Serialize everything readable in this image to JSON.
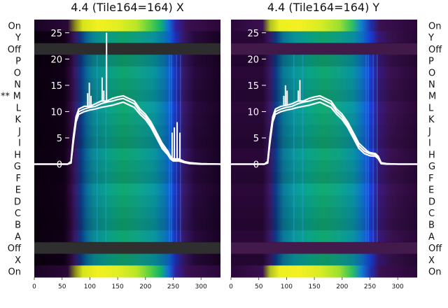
{
  "chart_data": [
    {
      "type": "heatmap",
      "title": "4.4 (Tile164=164) X",
      "row_labels": [
        "On",
        "Y",
        "Off",
        "P",
        "O",
        "N",
        "M",
        "L",
        "K",
        "J",
        "I",
        "H",
        "G",
        "F",
        "E",
        "D",
        "C",
        "B",
        "A",
        "Off",
        "X",
        "On"
      ],
      "row_markers": [
        {
          "row": "M",
          "marker": "**"
        }
      ],
      "x_ticks": [
        0,
        50,
        100,
        150,
        200,
        250,
        300
      ],
      "xlim": [
        0,
        335
      ],
      "y_ticks": [
        0,
        5,
        10,
        15,
        20,
        25
      ],
      "ylim": [
        -21.5,
        27.5
      ],
      "colormap": "nipy_spectral",
      "overlay": {
        "color": "#ffffff",
        "lines": [
          {
            "x": [
              0,
              60,
              66,
              70,
              75,
              80,
              90,
              100,
              110,
              120,
              130,
              140,
              150,
              160,
              170,
              180,
              190,
              200,
              210,
              220,
              230,
              240,
              245,
              250,
              260,
              270,
              280,
              300,
              335
            ],
            "y": [
              0,
              0,
              0.5,
              5,
              9,
              10.5,
              11,
              11,
              11.5,
              12,
              12,
              12.5,
              12.8,
              13,
              12.5,
              12,
              10.5,
              9.5,
              8,
              6,
              4,
              2.5,
              1.5,
              1,
              1,
              0.5,
              0.3,
              0.1,
              0
            ]
          },
          {
            "x": [
              0,
              60,
              66,
              70,
              75,
              80,
              90,
              100,
              110,
              120,
              130,
              140,
              150,
              160,
              170,
              180,
              190,
              200,
              210,
              220,
              230,
              240,
              245,
              250,
              260,
              270,
              280,
              300,
              335
            ],
            "y": [
              0,
              0,
              0.3,
              4.5,
              8.5,
              10,
              10.5,
              10.8,
              11,
              11.5,
              11.8,
              12,
              12.3,
              12.5,
              12,
              11.5,
              10,
              9,
              7.5,
              5.5,
              3.5,
              2,
              1.2,
              0.8,
              0.8,
              0.4,
              0.2,
              0.1,
              0
            ]
          },
          {
            "x": [
              0,
              60,
              66,
              70,
              75,
              80,
              90,
              100,
              110,
              120,
              130,
              140,
              150,
              160,
              170,
              180,
              190,
              200,
              210,
              220,
              230,
              240,
              245,
              250,
              260,
              270,
              280,
              300,
              335
            ],
            "y": [
              0,
              0,
              0.2,
              4,
              8,
              9.5,
              10,
              10.3,
              10.5,
              10.8,
              11,
              11.2,
              11.5,
              11.8,
              11.3,
              10.8,
              9.5,
              8.5,
              7,
              5,
              3,
              1.8,
              1,
              0.6,
              0.6,
              0.3,
              0.1,
              0,
              0
            ]
          }
        ],
        "spikes": [
          {
            "x": 96,
            "y": 13.5
          },
          {
            "x": 99,
            "y": 15.5
          },
          {
            "x": 102,
            "y": 13
          },
          {
            "x": 122,
            "y": 16.5
          },
          {
            "x": 125,
            "y": 14
          },
          {
            "x": 130,
            "y": 25
          },
          {
            "x": 248,
            "y": 6
          },
          {
            "x": 252,
            "y": 7
          },
          {
            "x": 257,
            "y": 8
          },
          {
            "x": 262,
            "y": 6
          }
        ]
      }
    },
    {
      "type": "heatmap",
      "title": "4.4 (Tile164=164) Y",
      "row_labels": [
        "On",
        "Y",
        "Off",
        "P",
        "O",
        "N",
        "M",
        "L",
        "K",
        "J",
        "I",
        "H",
        "G",
        "F",
        "E",
        "D",
        "C",
        "B",
        "A",
        "Off",
        "X",
        "On"
      ],
      "row_markers": [],
      "x_ticks": [
        0,
        50,
        100,
        150,
        200,
        250,
        300
      ],
      "xlim": [
        0,
        335
      ],
      "y_ticks": [
        0,
        5,
        10,
        15,
        20,
        25
      ],
      "ylim": [
        -21.5,
        27.5
      ],
      "colormap": "nipy_spectral",
      "overlay": {
        "color": "#ffffff",
        "lines": [
          {
            "x": [
              0,
              60,
              66,
              70,
              75,
              80,
              90,
              100,
              110,
              120,
              130,
              140,
              150,
              160,
              170,
              180,
              190,
              200,
              210,
              220,
              230,
              240,
              245,
              250,
              260,
              265,
              270,
              280,
              300,
              335
            ],
            "y": [
              0,
              0,
              0.5,
              5,
              9,
              10.5,
              11,
              11.2,
              11.5,
              12,
              12,
              12.5,
              12.8,
              13,
              12.5,
              12,
              10.5,
              9.5,
              8,
              6,
              4,
              3,
              2.5,
              2.2,
              2,
              1.5,
              0.3,
              0.1,
              0,
              0
            ]
          },
          {
            "x": [
              0,
              60,
              66,
              70,
              75,
              80,
              90,
              100,
              110,
              120,
              130,
              140,
              150,
              160,
              170,
              180,
              190,
              200,
              210,
              220,
              230,
              240,
              245,
              250,
              260,
              265,
              270,
              280,
              300,
              335
            ],
            "y": [
              0,
              0,
              0.3,
              4.5,
              8.5,
              10,
              10.5,
              10.8,
              11,
              11.5,
              11.8,
              12,
              12.3,
              12.5,
              12,
              11.5,
              10,
              9,
              7.5,
              5.5,
              3.5,
              2.5,
              2.2,
              2,
              1.8,
              1.3,
              0.2,
              0.1,
              0,
              0
            ]
          },
          {
            "x": [
              0,
              60,
              66,
              70,
              75,
              80,
              90,
              100,
              110,
              120,
              130,
              140,
              150,
              160,
              170,
              180,
              190,
              200,
              210,
              220,
              230,
              240,
              245,
              250,
              260,
              265,
              270,
              280,
              300,
              335
            ],
            "y": [
              0,
              0,
              0.2,
              4,
              8,
              9.5,
              10,
              10.3,
              10.5,
              10.8,
              11,
              11.2,
              11.5,
              11.8,
              11.3,
              10.8,
              9.5,
              8.5,
              7,
              5,
              3,
              2,
              1.8,
              1.6,
              1.5,
              1,
              0.1,
              0,
              0,
              0
            ]
          }
        ],
        "spikes": [
          {
            "x": 95,
            "y": 13
          },
          {
            "x": 98,
            "y": 15
          },
          {
            "x": 101,
            "y": 14
          },
          {
            "x": 121,
            "y": 14
          },
          {
            "x": 124,
            "y": 16
          }
        ]
      }
    }
  ]
}
